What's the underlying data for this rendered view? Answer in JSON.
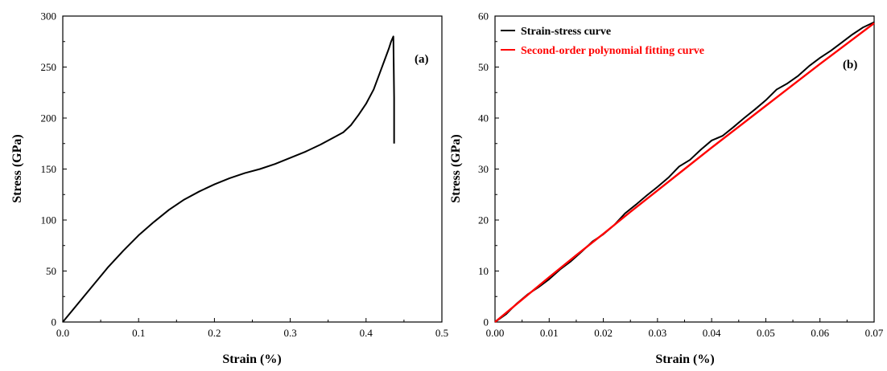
{
  "colors": {
    "black_curve": "#000000",
    "fit_curve": "#ff0000",
    "axis": "#000000"
  },
  "chart_data": [
    {
      "type": "line",
      "panel_label": "(a)",
      "xlabel": "Strain (%)",
      "ylabel": "Stress (GPa)",
      "xlim": [
        0.0,
        0.5
      ],
      "ylim": [
        0,
        300
      ],
      "xticks": [
        "0.0",
        "0.1",
        "0.2",
        "0.3",
        "0.4",
        "0.5"
      ],
      "yticks": [
        "0",
        "50",
        "100",
        "150",
        "200",
        "250",
        "300"
      ],
      "series": [
        {
          "color": "#000000",
          "x": [
            0.0,
            0.02,
            0.04,
            0.06,
            0.08,
            0.1,
            0.12,
            0.14,
            0.16,
            0.18,
            0.2,
            0.22,
            0.24,
            0.26,
            0.28,
            0.3,
            0.32,
            0.34,
            0.36,
            0.37,
            0.38,
            0.39,
            0.4,
            0.41,
            0.42,
            0.425,
            0.43,
            0.433,
            0.436,
            0.437,
            0.437
          ],
          "y": [
            0,
            18,
            36,
            54,
            70,
            85,
            98,
            110,
            120,
            128,
            135,
            141,
            146,
            150,
            155,
            161,
            167,
            174,
            182,
            186,
            193,
            203,
            214,
            228,
            248,
            258,
            268,
            275,
            280,
            220,
            175
          ]
        }
      ]
    },
    {
      "type": "line",
      "panel_label": "(b)",
      "xlabel": "Strain (%)",
      "ylabel": "Stress (GPa)",
      "xlim": [
        0.0,
        0.07
      ],
      "ylim": [
        0,
        60
      ],
      "xticks": [
        "0.00",
        "0.01",
        "0.02",
        "0.03",
        "0.04",
        "0.05",
        "0.06",
        "0.07"
      ],
      "yticks": [
        "0",
        "10",
        "20",
        "30",
        "40",
        "50",
        "60"
      ],
      "legend_position": "top-left",
      "series": [
        {
          "name": "Strain-stress curve",
          "color": "#000000",
          "x": [
            0.0,
            0.002,
            0.004,
            0.006,
            0.008,
            0.01,
            0.012,
            0.014,
            0.016,
            0.018,
            0.02,
            0.022,
            0.024,
            0.026,
            0.028,
            0.03,
            0.032,
            0.034,
            0.036,
            0.038,
            0.04,
            0.042,
            0.044,
            0.046,
            0.048,
            0.05,
            0.052,
            0.054,
            0.056,
            0.058,
            0.06,
            0.062,
            0.064,
            0.066,
            0.068,
            0.07
          ],
          "y": [
            0,
            1.5,
            3.6,
            5.4,
            6.8,
            8.4,
            10.3,
            11.9,
            13.8,
            15.8,
            17.2,
            19.0,
            21.3,
            23.0,
            24.8,
            26.5,
            28.3,
            30.5,
            31.8,
            33.8,
            35.6,
            36.5,
            38.2,
            40.0,
            41.7,
            43.5,
            45.6,
            46.8,
            48.3,
            50.2,
            51.8,
            53.2,
            54.8,
            56.4,
            57.8,
            58.8
          ]
        },
        {
          "name": "Second-order polynomial fitting curve",
          "color": "#ff0000",
          "x": [
            0.0,
            0.005,
            0.01,
            0.015,
            0.02,
            0.025,
            0.03,
            0.035,
            0.04,
            0.045,
            0.05,
            0.055,
            0.06,
            0.065,
            0.07
          ],
          "y": [
            0,
            4.4,
            8.8,
            13.1,
            17.3,
            21.6,
            25.8,
            30.0,
            34.2,
            38.3,
            42.4,
            46.5,
            50.6,
            54.6,
            58.6
          ]
        }
      ]
    }
  ]
}
